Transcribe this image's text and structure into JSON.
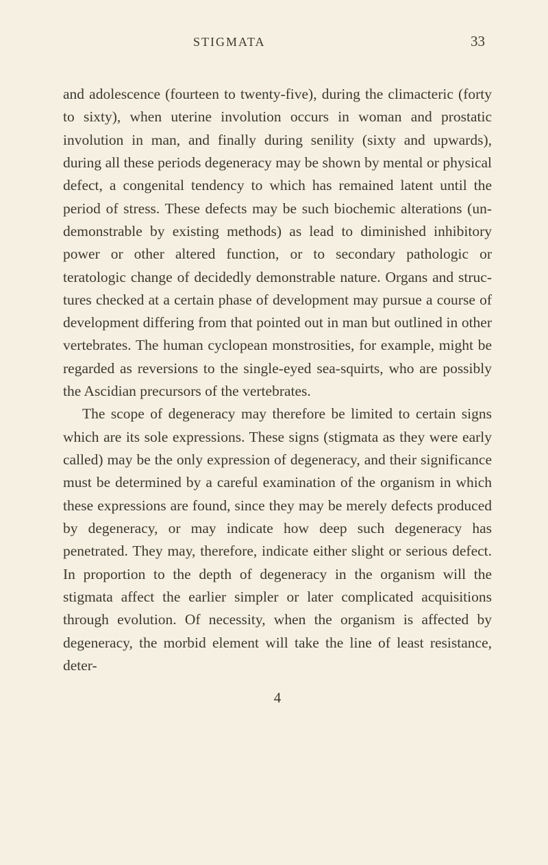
{
  "header": {
    "title": "STIGMATA",
    "pageNumber": "33"
  },
  "paragraphs": {
    "p1": "and adolescence (fourteen to twenty-five), during the climacteric (forty to sixty), when uterine involution occurs in woman and prostatic involution in man, and finally during senility (sixty and upwards), during all these periods degeneracy may be shown by mental or physical defect, a congenital tendency to which has remained latent until the period of stress. These defects may be such biochemic alterations (un-demonstrable by existing methods) as lead to diminished inhibitory power or other altered function, or to secondary pathologic or teratologic change of decidedly demonstrable nature. Organs and struc-tures checked at a certain phase of development may pursue a course of development differing from that pointed out in man but outlined in other vertebrates. The human cyclopean monstrosities, for example, might be regarded as reversions to the single-eyed sea-squirts, who are possibly the Ascidian precursors of the vertebrates.",
    "p2": "The scope of degeneracy may therefore be limited to certain signs which are its sole expressions. These signs (stigmata as they were early called) may be the only expression of degeneracy, and their significance must be determined by a careful examination of the organism in which these expressions are found, since they may be merely defects produced by degeneracy, or may indicate how deep such degeneracy has penetrated. They may, therefore, indicate either slight or serious defect. In proportion to the depth of degeneracy in the organism will the stigmata affect the earlier simpler or later complicated acquisitions through evolution. Of necessity, when the organism is affected by degeneracy, the morbid element will take the line of least resistance, deter-"
  },
  "footer": {
    "signatureNumber": "4"
  },
  "styling": {
    "backgroundColor": "#f5f0e1",
    "textColor": "#3a3830",
    "bodyFontSize": 21.5,
    "headerFontSize": 18,
    "pageNumberFontSize": 21,
    "lineHeight": 1.55,
    "fontFamily": "Georgia, serif",
    "pageWidth": 800,
    "pageHeight": 1261
  }
}
